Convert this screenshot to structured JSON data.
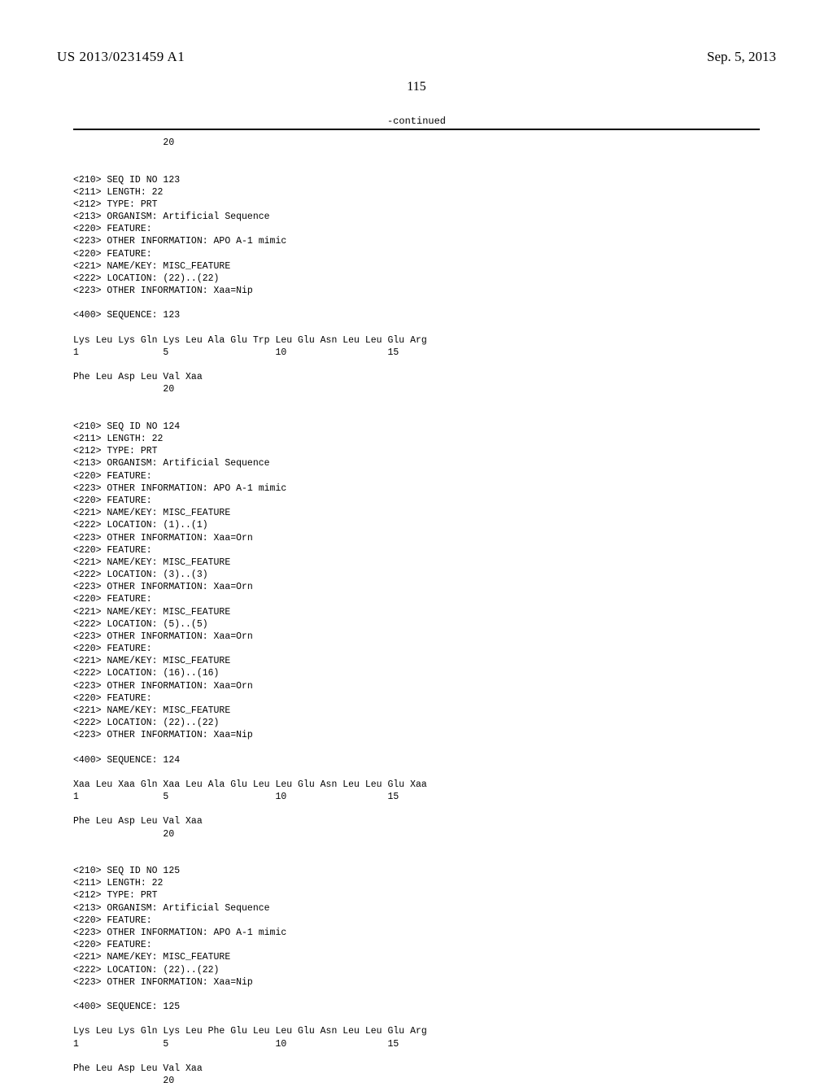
{
  "header": {
    "publication_number": "US 2013/0231459 A1",
    "publication_date": "Sep. 5, 2013",
    "page_number": "115",
    "continued_label": "-continued"
  },
  "listing_text": "                20\n\n\n<210> SEQ ID NO 123\n<211> LENGTH: 22\n<212> TYPE: PRT\n<213> ORGANISM: Artificial Sequence\n<220> FEATURE:\n<223> OTHER INFORMATION: APO A-1 mimic\n<220> FEATURE:\n<221> NAME/KEY: MISC_FEATURE\n<222> LOCATION: (22)..(22)\n<223> OTHER INFORMATION: Xaa=Nip\n\n<400> SEQUENCE: 123\n\nLys Leu Lys Gln Lys Leu Ala Glu Trp Leu Glu Asn Leu Leu Glu Arg\n1               5                   10                  15\n\nPhe Leu Asp Leu Val Xaa\n                20\n\n\n<210> SEQ ID NO 124\n<211> LENGTH: 22\n<212> TYPE: PRT\n<213> ORGANISM: Artificial Sequence\n<220> FEATURE:\n<223> OTHER INFORMATION: APO A-1 mimic\n<220> FEATURE:\n<221> NAME/KEY: MISC_FEATURE\n<222> LOCATION: (1)..(1)\n<223> OTHER INFORMATION: Xaa=Orn\n<220> FEATURE:\n<221> NAME/KEY: MISC_FEATURE\n<222> LOCATION: (3)..(3)\n<223> OTHER INFORMATION: Xaa=Orn\n<220> FEATURE:\n<221> NAME/KEY: MISC_FEATURE\n<222> LOCATION: (5)..(5)\n<223> OTHER INFORMATION: Xaa=Orn\n<220> FEATURE:\n<221> NAME/KEY: MISC_FEATURE\n<222> LOCATION: (16)..(16)\n<223> OTHER INFORMATION: Xaa=Orn\n<220> FEATURE:\n<221> NAME/KEY: MISC_FEATURE\n<222> LOCATION: (22)..(22)\n<223> OTHER INFORMATION: Xaa=Nip\n\n<400> SEQUENCE: 124\n\nXaa Leu Xaa Gln Xaa Leu Ala Glu Leu Leu Glu Asn Leu Leu Glu Xaa\n1               5                   10                  15\n\nPhe Leu Asp Leu Val Xaa\n                20\n\n\n<210> SEQ ID NO 125\n<211> LENGTH: 22\n<212> TYPE: PRT\n<213> ORGANISM: Artificial Sequence\n<220> FEATURE:\n<223> OTHER INFORMATION: APO A-1 mimic\n<220> FEATURE:\n<221> NAME/KEY: MISC_FEATURE\n<222> LOCATION: (22)..(22)\n<223> OTHER INFORMATION: Xaa=Nip\n\n<400> SEQUENCE: 125\n\nLys Leu Lys Gln Lys Leu Phe Glu Leu Leu Glu Asn Leu Leu Glu Arg\n1               5                   10                  15\n\nPhe Leu Asp Leu Val Xaa\n                20"
}
